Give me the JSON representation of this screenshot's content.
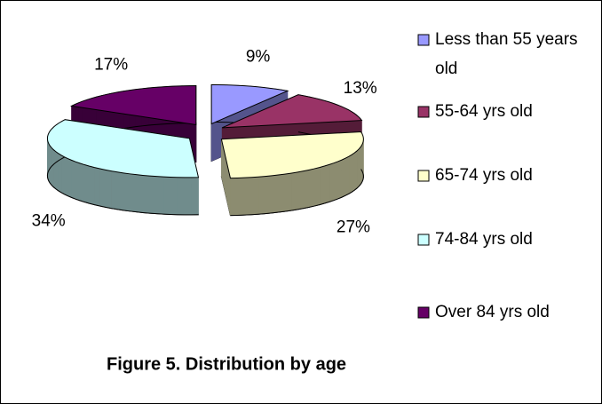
{
  "chart_data": {
    "type": "pie",
    "title": "Figure 5.  Distribution by age",
    "categories": [
      "Less than 55 years old",
      "55-64 yrs old",
      "65-74 yrs old",
      "74-84 yrs old",
      "Over 84 yrs old"
    ],
    "values": [
      9,
      13,
      27,
      34,
      17
    ],
    "value_labels": [
      "9%",
      "13%",
      "27%",
      "34%",
      "17%"
    ],
    "colors": [
      "#9999ff",
      "#993366",
      "#ffffcc",
      "#ccffff",
      "#660066"
    ],
    "legend": "right"
  }
}
